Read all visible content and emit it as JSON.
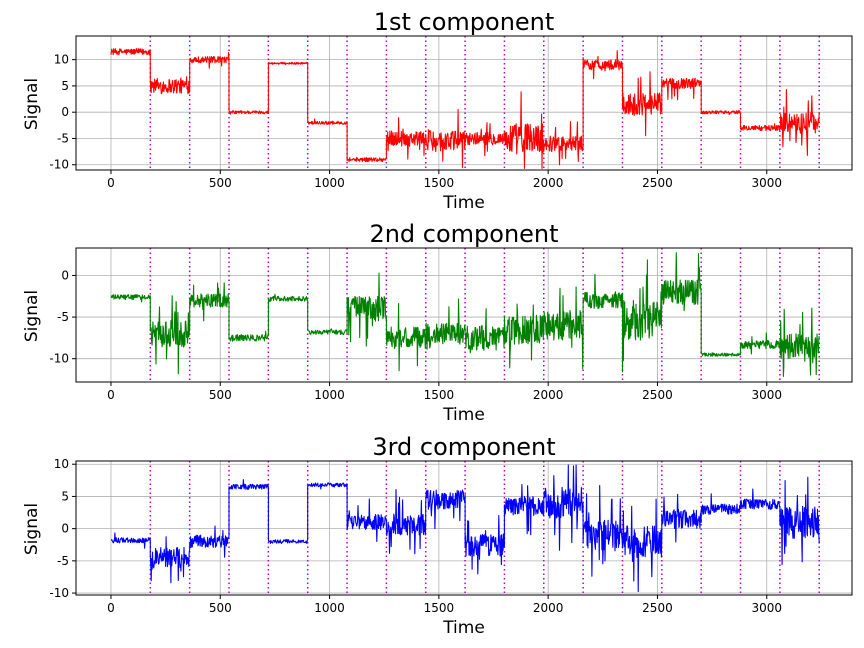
{
  "chart_data": [
    {
      "type": "line",
      "title": "1st component",
      "xlabel": "Time",
      "ylabel": "Signal",
      "color": "#ff0000",
      "xlim": [
        -160,
        3390
      ],
      "ylim": [
        -11,
        14.5
      ],
      "xticks": [
        0,
        500,
        1000,
        1500,
        2000,
        2500,
        3000
      ],
      "yticks": [
        -10,
        -5,
        0,
        5,
        10
      ],
      "grid": true,
      "changepoints": [
        180,
        360,
        540,
        720,
        900,
        1080,
        1260,
        1440,
        1620,
        1800,
        1980,
        2160,
        2340,
        2520,
        2700,
        2880,
        3060,
        3240
      ],
      "segments": [
        {
          "x": [
            0,
            180
          ],
          "level": 11.5,
          "noise": 0.6,
          "spikes": 0
        },
        {
          "x": [
            180,
            360
          ],
          "level": 5.0,
          "noise": 1.5,
          "spikes": 10
        },
        {
          "x": [
            360,
            540
          ],
          "level": 10.0,
          "noise": 0.6,
          "spikes": 8
        },
        {
          "x": [
            540,
            720
          ],
          "level": 0.0,
          "noise": 0.3,
          "spikes": 1
        },
        {
          "x": [
            720,
            900
          ],
          "level": 9.3,
          "noise": 0.2,
          "spikes": 0
        },
        {
          "x": [
            900,
            1080
          ],
          "level": -2.0,
          "noise": 0.3,
          "spikes": 1
        },
        {
          "x": [
            1080,
            1260
          ],
          "level": -9.0,
          "noise": 0.4,
          "spikes": 2
        },
        {
          "x": [
            1260,
            1440
          ],
          "level": -5.0,
          "noise": 1.5,
          "spikes": 8
        },
        {
          "x": [
            1440,
            1620
          ],
          "level": -5.5,
          "noise": 2.0,
          "spikes": 10
        },
        {
          "x": [
            1620,
            1800
          ],
          "level": -5.0,
          "noise": 1.2,
          "spikes": 6
        },
        {
          "x": [
            1800,
            1980
          ],
          "level": -5.0,
          "noise": 3.0,
          "spikes": 12
        },
        {
          "x": [
            1980,
            2160
          ],
          "level": -6.0,
          "noise": 1.5,
          "spikes": 8
        },
        {
          "x": [
            2160,
            2340
          ],
          "level": 9.0,
          "noise": 1.0,
          "spikes": 6
        },
        {
          "x": [
            2340,
            2520
          ],
          "level": 1.5,
          "noise": 2.2,
          "spikes": 10
        },
        {
          "x": [
            2520,
            2700
          ],
          "level": 5.5,
          "noise": 1.0,
          "spikes": 6
        },
        {
          "x": [
            2700,
            2880
          ],
          "level": 0.0,
          "noise": 0.3,
          "spikes": 1
        },
        {
          "x": [
            2880,
            3060
          ],
          "level": -3.0,
          "noise": 0.5,
          "spikes": 3
        },
        {
          "x": [
            3060,
            3240
          ],
          "level": -2.0,
          "noise": 2.0,
          "spikes": 10
        }
      ]
    },
    {
      "type": "line",
      "title": "2nd component",
      "xlabel": "Time",
      "ylabel": "Signal",
      "color": "#008000",
      "xlim": [
        -160,
        3390
      ],
      "ylim": [
        -12.8,
        3.3
      ],
      "xticks": [
        0,
        500,
        1000,
        1500,
        2000,
        2500,
        3000
      ],
      "yticks": [
        -10,
        -5,
        0
      ],
      "grid": true,
      "changepoints": [
        180,
        360,
        540,
        720,
        900,
        1080,
        1260,
        1440,
        1620,
        1800,
        1980,
        2160,
        2340,
        2520,
        2700,
        2880,
        3060,
        3240
      ],
      "segments": [
        {
          "x": [
            0,
            180
          ],
          "level": -2.6,
          "noise": 0.3,
          "spikes": 2
        },
        {
          "x": [
            180,
            360
          ],
          "level": -7.0,
          "noise": 1.6,
          "spikes": 10
        },
        {
          "x": [
            360,
            540
          ],
          "level": -3.0,
          "noise": 0.8,
          "spikes": 6
        },
        {
          "x": [
            540,
            720
          ],
          "level": -7.5,
          "noise": 0.4,
          "spikes": 2
        },
        {
          "x": [
            720,
            900
          ],
          "level": -2.8,
          "noise": 0.3,
          "spikes": 1
        },
        {
          "x": [
            900,
            1080
          ],
          "level": -6.8,
          "noise": 0.3,
          "spikes": 1
        },
        {
          "x": [
            1080,
            1260
          ],
          "level": -4.0,
          "noise": 1.5,
          "spikes": 8
        },
        {
          "x": [
            1260,
            1440
          ],
          "level": -7.5,
          "noise": 1.3,
          "spikes": 8
        },
        {
          "x": [
            1440,
            1620
          ],
          "level": -7.0,
          "noise": 1.3,
          "spikes": 8
        },
        {
          "x": [
            1620,
            1800
          ],
          "level": -7.5,
          "noise": 1.5,
          "spikes": 8
        },
        {
          "x": [
            1800,
            1980
          ],
          "level": -6.5,
          "noise": 1.8,
          "spikes": 10
        },
        {
          "x": [
            1980,
            2160
          ],
          "level": -6.0,
          "noise": 1.8,
          "spikes": 10
        },
        {
          "x": [
            2160,
            2340
          ],
          "level": -3.0,
          "noise": 1.0,
          "spikes": 6
        },
        {
          "x": [
            2340,
            2520
          ],
          "level": -5.5,
          "noise": 2.5,
          "spikes": 14
        },
        {
          "x": [
            2520,
            2700
          ],
          "level": -2.0,
          "noise": 1.5,
          "spikes": 8
        },
        {
          "x": [
            2700,
            2880
          ],
          "level": -9.5,
          "noise": 0.2,
          "spikes": 1
        },
        {
          "x": [
            2880,
            3060
          ],
          "level": -8.3,
          "noise": 0.5,
          "spikes": 3
        },
        {
          "x": [
            3060,
            3240
          ],
          "level": -8.5,
          "noise": 1.5,
          "spikes": 10
        }
      ]
    },
    {
      "type": "line",
      "title": "3rd component",
      "xlabel": "Time",
      "ylabel": "Signal",
      "color": "#0000ff",
      "xlim": [
        -160,
        3390
      ],
      "ylim": [
        -10.3,
        10.5
      ],
      "xticks": [
        0,
        500,
        1000,
        1500,
        2000,
        2500,
        3000
      ],
      "yticks": [
        -10,
        -5,
        0,
        5,
        10
      ],
      "grid": true,
      "changepoints": [
        180,
        360,
        540,
        720,
        900,
        1080,
        1260,
        1440,
        1620,
        1800,
        1980,
        2160,
        2340,
        2520,
        2700,
        2880,
        3060,
        3240
      ],
      "segments": [
        {
          "x": [
            0,
            180
          ],
          "level": -1.8,
          "noise": 0.4,
          "spikes": 2
        },
        {
          "x": [
            180,
            360
          ],
          "level": -4.5,
          "noise": 1.6,
          "spikes": 10
        },
        {
          "x": [
            360,
            540
          ],
          "level": -2.0,
          "noise": 1.0,
          "spikes": 6
        },
        {
          "x": [
            540,
            720
          ],
          "level": 6.5,
          "noise": 0.4,
          "spikes": 2
        },
        {
          "x": [
            720,
            900
          ],
          "level": -2.0,
          "noise": 0.3,
          "spikes": 1
        },
        {
          "x": [
            900,
            1080
          ],
          "level": 6.8,
          "noise": 0.3,
          "spikes": 1
        },
        {
          "x": [
            1080,
            1260
          ],
          "level": 1.0,
          "noise": 1.2,
          "spikes": 6
        },
        {
          "x": [
            1260,
            1440
          ],
          "level": 0.5,
          "noise": 1.8,
          "spikes": 10
        },
        {
          "x": [
            1440,
            1620
          ],
          "level": 4.5,
          "noise": 1.5,
          "spikes": 8
        },
        {
          "x": [
            1620,
            1800
          ],
          "level": -2.5,
          "noise": 1.8,
          "spikes": 10
        },
        {
          "x": [
            1800,
            1980
          ],
          "level": 3.5,
          "noise": 1.5,
          "spikes": 8
        },
        {
          "x": [
            1980,
            2160
          ],
          "level": 4.0,
          "noise": 2.5,
          "spikes": 12
        },
        {
          "x": [
            2160,
            2340
          ],
          "level": -1.0,
          "noise": 2.5,
          "spikes": 12
        },
        {
          "x": [
            2340,
            2520
          ],
          "level": -2.0,
          "noise": 2.5,
          "spikes": 14
        },
        {
          "x": [
            2520,
            2700
          ],
          "level": 1.5,
          "noise": 1.5,
          "spikes": 8
        },
        {
          "x": [
            2700,
            2880
          ],
          "level": 3.0,
          "noise": 0.8,
          "spikes": 4
        },
        {
          "x": [
            2880,
            3060
          ],
          "level": 3.8,
          "noise": 0.8,
          "spikes": 4
        },
        {
          "x": [
            3060,
            3240
          ],
          "level": 1.0,
          "noise": 2.5,
          "spikes": 12
        }
      ]
    }
  ]
}
